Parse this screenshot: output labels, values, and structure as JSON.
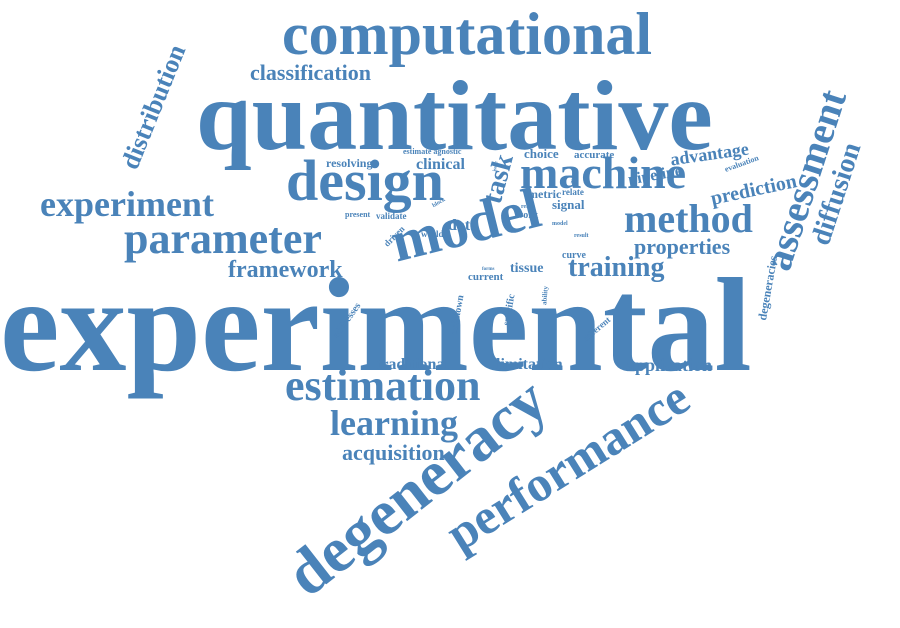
{
  "cloud": {
    "color": "#4a83b9",
    "words": [
      "experimental",
      "quantitative",
      "computational",
      "degeneracy",
      "performance",
      "model",
      "design",
      "machine",
      "assessment",
      "parameter",
      "estimation",
      "method",
      "experiment",
      "learning",
      "diffusion",
      "distribution",
      "task",
      "training",
      "classification",
      "framework",
      "acquisition",
      "prediction",
      "properties",
      "advantage",
      "application",
      "traditional",
      "limitation",
      "clinical",
      "pipeline",
      "resolving",
      "data",
      "tissue",
      "choice",
      "degeneracies",
      "signal",
      "accurate",
      "estimate agnostic",
      "evaluation",
      "metric",
      "relate",
      "current",
      "curve",
      "work",
      "world",
      "validate",
      "present",
      "driven",
      "unknown",
      "specific",
      "addresses",
      "different",
      "ability",
      "block",
      "result",
      "forms",
      "real",
      "model",
      "issue",
      "noise"
    ]
  }
}
